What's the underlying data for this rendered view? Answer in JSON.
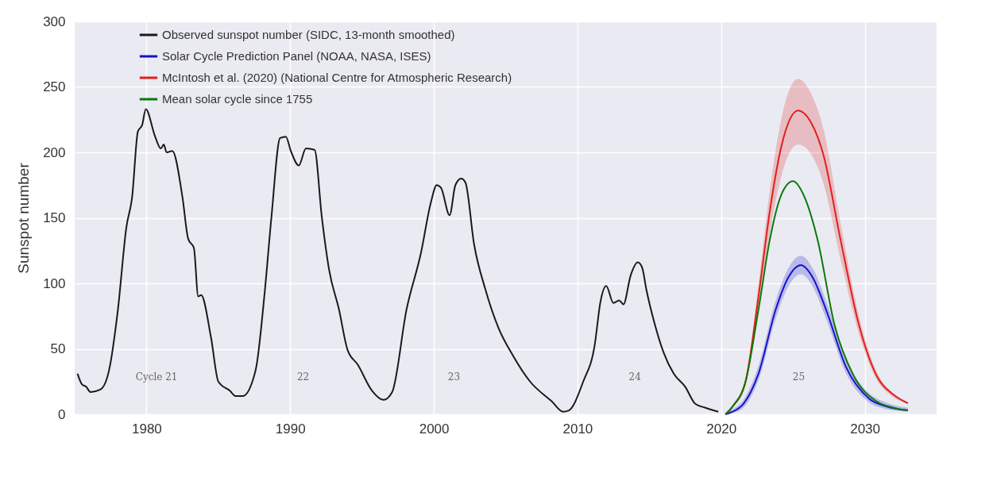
{
  "chart_data": {
    "type": "line",
    "ylabel": "Sunspot number",
    "xlim": [
      1975,
      2035
    ],
    "xticks": [
      1980,
      1990,
      2000,
      2010,
      2020,
      2030
    ],
    "ylim": [
      0,
      300
    ],
    "yticks": [
      0,
      50,
      100,
      150,
      200,
      250,
      300
    ],
    "grid": true,
    "legend": "top left",
    "series": [
      {
        "name": "Observed sunspot number (SIDC, 13-month smoothed)",
        "color": "#1a1a1a",
        "x": [
          1975.2,
          1975.5,
          1975.8,
          1976.1,
          1976.8,
          1977.4,
          1978.0,
          1978.6,
          1979.0,
          1979.4,
          1979.7,
          1979.95,
          1980.6,
          1981.0,
          1981.2,
          1981.4,
          1981.8,
          1982.5,
          1982.9,
          1983.3,
          1983.6,
          1983.8,
          1984.5,
          1985.0,
          1985.8,
          1986.2,
          1986.7,
          1987.6,
          1988.2,
          1988.7,
          1989.3,
          1989.7,
          1990.05,
          1990.6,
          1991.1,
          1991.7,
          1992.2,
          1992.7,
          1993.4,
          1994.0,
          1994.7,
          1995.7,
          1996.5,
          1997.1,
          1998.1,
          1999.1,
          1999.8,
          2000.2,
          2000.5,
          2001.1,
          2001.5,
          2001.9,
          2002.2,
          2002.8,
          2003.6,
          2004.5,
          2005.5,
          2006.7,
          2008.2,
          2009.0,
          2009.4,
          2010.4,
          2011.2,
          2011.6,
          2012.0,
          2012.5,
          2012.9,
          2013.2,
          2013.7,
          2014.2,
          2014.5,
          2014.8,
          2015.4,
          2016.0,
          2016.7,
          2017.5,
          2018.2,
          2018.9,
          2019.8
        ],
        "values": [
          31,
          23,
          21,
          17,
          19,
          34,
          79,
          143,
          166,
          216,
          221,
          233,
          212,
          203,
          206,
          200,
          201,
          166,
          134,
          127,
          90,
          91,
          58,
          25,
          18,
          14,
          14,
          34,
          90,
          151,
          211,
          212,
          201,
          190,
          203,
          202,
          151,
          111,
          80,
          49,
          38,
          18,
          11,
          17,
          80,
          123,
          162,
          175,
          173,
          152,
          175,
          180,
          177,
          130,
          95,
          66,
          45,
          25,
          10,
          2,
          3,
          25,
          53,
          86,
          98,
          85,
          87,
          84,
          106,
          116,
          112,
          95,
          68,
          47,
          31,
          21,
          8,
          5,
          2
        ]
      },
      {
        "name": "Solar Cycle Prediction Panel (NOAA, NASA, ISES)",
        "color": "#1414c8",
        "x": [
          2020.3,
          2020.8,
          2021.55,
          2022.6,
          2023.8,
          2024.7,
          2025.55,
          2026.4,
          2027.3,
          2028.7,
          2030.3,
          2031.5,
          2033
        ],
        "values": [
          0,
          2,
          8,
          31,
          80,
          105,
          114,
          104,
          80,
          36,
          12,
          6,
          3
        ],
        "upper": [
          1,
          4,
          11,
          37,
          87,
          112,
          121,
          111,
          87,
          42,
          16,
          9,
          5
        ],
        "lower": [
          0,
          1,
          5,
          26,
          73,
          98,
          107,
          97,
          73,
          31,
          9,
          4,
          2
        ]
      },
      {
        "name": "McIntosh et al. (2020) (National Centre for Atmospheric Research)",
        "color": "#e0201b",
        "x": [
          2020.3,
          2020.8,
          2021.7,
          2022.6,
          2023.4,
          2024.2,
          2025.35,
          2026.3,
          2027.1,
          2028.3,
          2029.6,
          2030.8,
          2032,
          2033
        ],
        "values": [
          0,
          6,
          25,
          90,
          156,
          205,
          232,
          222,
          199,
          134,
          68,
          30,
          15,
          8.5
        ],
        "upper": [
          0,
          7,
          28,
          99,
          172,
          226,
          256,
          244,
          219,
          147,
          75,
          33,
          16,
          9
        ],
        "lower": [
          0,
          5,
          22,
          80,
          139,
          182,
          206,
          198,
          177,
          119,
          61,
          27,
          13,
          8
        ]
      },
      {
        "name": "Mean solar cycle since 1755",
        "color": "#0a7a0a",
        "x": [
          2020.3,
          2020.8,
          2021.7,
          2022.6,
          2023.4,
          2024.2,
          2025.0,
          2025.8,
          2026.7,
          2027.9,
          2029.2,
          2030.8,
          2032,
          2033
        ],
        "values": [
          0,
          6,
          25,
          80,
          134,
          168,
          178,
          166,
          134,
          68,
          30,
          10,
          5,
          3
        ]
      }
    ],
    "annotations": [
      "Cycle 21",
      "22",
      "23",
      "24",
      "25"
    ]
  }
}
